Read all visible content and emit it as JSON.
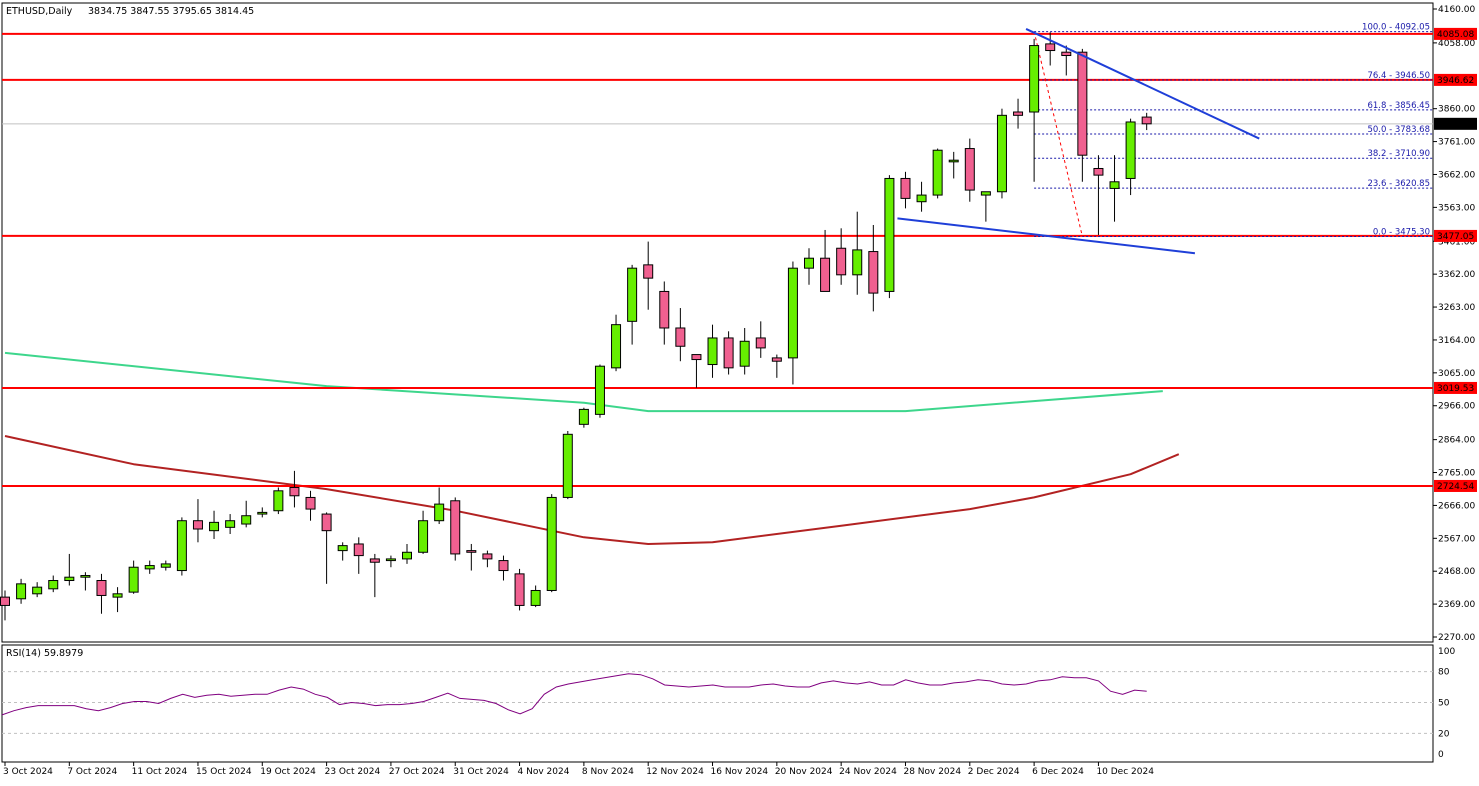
{
  "header": {
    "symbol_label": "ETHUSD,Daily",
    "ohlc_text": "3834.75 3847.55 3795.65 3814.45"
  },
  "rsi_panel": {
    "label": "RSI(14) 59.8979",
    "levels": [
      100,
      80,
      50,
      20,
      0
    ],
    "dashed_levels": [
      80,
      50,
      20
    ],
    "values": [
      38,
      42,
      45,
      47,
      47,
      47,
      47,
      44,
      42,
      45,
      49,
      51,
      51,
      49,
      54,
      58,
      55,
      57,
      58,
      56,
      57,
      58,
      58,
      62,
      65,
      63,
      58,
      55,
      48,
      50,
      49,
      47,
      48,
      48,
      49,
      51,
      55,
      59,
      54,
      53,
      52,
      49,
      43,
      39,
      44,
      58,
      65,
      68,
      70,
      72,
      74,
      76,
      78,
      77,
      73,
      67,
      66,
      65,
      66,
      67,
      65,
      65,
      65,
      67,
      68,
      66,
      65,
      65,
      69,
      71,
      69,
      68,
      70,
      67,
      67,
      72,
      69,
      67,
      67,
      69,
      70,
      72,
      71,
      68,
      67,
      68,
      71,
      72,
      75,
      74,
      74,
      71,
      61,
      58,
      62,
      61
    ],
    "color": "#800080"
  },
  "chart_data": {
    "type": "candlestick",
    "title": "ETHUSD,Daily",
    "ohlc_last": {
      "open": 3834.75,
      "high": 3847.55,
      "low": 3795.65,
      "close": 3814.45
    },
    "y_ticks": [
      4160.0,
      4058.0,
      3860.0,
      3761.0,
      3662.0,
      3563.0,
      3461.0,
      3362.0,
      3263.0,
      3164.0,
      3065.0,
      2966.0,
      2864.0,
      2765.0,
      2666.0,
      2567.0,
      2468.0,
      2369.0,
      2270.0
    ],
    "x_ticks": [
      {
        "label": "3 Oct 2024",
        "bar": 0
      },
      {
        "label": "7 Oct 2024",
        "bar": 4
      },
      {
        "label": "11 Oct 2024",
        "bar": 8
      },
      {
        "label": "15 Oct 2024",
        "bar": 12
      },
      {
        "label": "19 Oct 2024",
        "bar": 16
      },
      {
        "label": "23 Oct 2024",
        "bar": 20
      },
      {
        "label": "27 Oct 2024",
        "bar": 24
      },
      {
        "label": "31 Oct 2024",
        "bar": 28
      },
      {
        "label": "4 Nov 2024",
        "bar": 32
      },
      {
        "label": "8 Nov 2024",
        "bar": 36
      },
      {
        "label": "12 Nov 2024",
        "bar": 40
      },
      {
        "label": "16 Nov 2024",
        "bar": 44
      },
      {
        "label": "20 Nov 2024",
        "bar": 48
      },
      {
        "label": "24 Nov 2024",
        "bar": 52
      },
      {
        "label": "28 Nov 2024",
        "bar": 56
      },
      {
        "label": "2 Dec 2024",
        "bar": 60
      },
      {
        "label": "6 Dec 2024",
        "bar": 64
      },
      {
        "label": "10 Dec 2024",
        "bar": 68
      }
    ],
    "candles": [
      [
        2390,
        2410,
        2320,
        2365
      ],
      [
        2385,
        2445,
        2370,
        2430
      ],
      [
        2400,
        2435,
        2390,
        2420
      ],
      [
        2415,
        2455,
        2405,
        2440
      ],
      [
        2440,
        2520,
        2425,
        2450
      ],
      [
        2450,
        2465,
        2410,
        2455
      ],
      [
        2440,
        2460,
        2340,
        2395
      ],
      [
        2390,
        2420,
        2345,
        2400
      ],
      [
        2405,
        2500,
        2400,
        2480
      ],
      [
        2475,
        2500,
        2460,
        2485
      ],
      [
        2480,
        2500,
        2470,
        2490
      ],
      [
        2470,
        2630,
        2455,
        2620
      ],
      [
        2620,
        2685,
        2555,
        2595
      ],
      [
        2590,
        2650,
        2565,
        2615
      ],
      [
        2600,
        2640,
        2580,
        2620
      ],
      [
        2610,
        2680,
        2600,
        2635
      ],
      [
        2640,
        2660,
        2630,
        2645
      ],
      [
        2650,
        2720,
        2640,
        2710
      ],
      [
        2720,
        2770,
        2660,
        2695
      ],
      [
        2690,
        2710,
        2620,
        2655
      ],
      [
        2640,
        2645,
        2430,
        2590
      ],
      [
        2530,
        2555,
        2500,
        2545
      ],
      [
        2550,
        2570,
        2460,
        2515
      ],
      [
        2505,
        2520,
        2390,
        2495
      ],
      [
        2500,
        2515,
        2480,
        2505
      ],
      [
        2505,
        2550,
        2490,
        2525
      ],
      [
        2525,
        2650,
        2520,
        2620
      ],
      [
        2620,
        2720,
        2610,
        2670
      ],
      [
        2680,
        2690,
        2500,
        2520
      ],
      [
        2530,
        2550,
        2470,
        2525
      ],
      [
        2520,
        2530,
        2480,
        2505
      ],
      [
        2500,
        2515,
        2440,
        2470
      ],
      [
        2460,
        2475,
        2350,
        2365
      ],
      [
        2365,
        2425,
        2360,
        2410
      ],
      [
        2410,
        2700,
        2405,
        2690
      ],
      [
        2690,
        2890,
        2685,
        2880
      ],
      [
        2910,
        2960,
        2900,
        2955
      ],
      [
        2940,
        3090,
        2930,
        3085
      ],
      [
        3080,
        3240,
        3070,
        3210
      ],
      [
        3220,
        3390,
        3150,
        3380
      ],
      [
        3390,
        3460,
        3255,
        3350
      ],
      [
        3310,
        3340,
        3150,
        3200
      ],
      [
        3200,
        3260,
        3100,
        3145
      ],
      [
        3120,
        3120,
        3020,
        3105
      ],
      [
        3090,
        3210,
        3050,
        3170
      ],
      [
        3170,
        3190,
        3060,
        3080
      ],
      [
        3085,
        3200,
        3060,
        3160
      ],
      [
        3170,
        3220,
        3110,
        3140
      ],
      [
        3110,
        3120,
        3050,
        3100
      ],
      [
        3110,
        3400,
        3030,
        3380
      ],
      [
        3380,
        3440,
        3330,
        3410
      ],
      [
        3410,
        3495,
        3320,
        3310
      ],
      [
        3440,
        3500,
        3330,
        3360
      ],
      [
        3360,
        3550,
        3300,
        3435
      ],
      [
        3430,
        3510,
        3250,
        3305
      ],
      [
        3310,
        3660,
        3290,
        3650
      ],
      [
        3650,
        3670,
        3560,
        3590
      ],
      [
        3580,
        3640,
        3550,
        3600
      ],
      [
        3600,
        3740,
        3590,
        3735
      ],
      [
        3700,
        3730,
        3650,
        3705
      ],
      [
        3740,
        3770,
        3580,
        3615
      ],
      [
        3600,
        3610,
        3520,
        3610
      ],
      [
        3610,
        3860,
        3590,
        3840
      ],
      [
        3850,
        3890,
        3800,
        3840
      ],
      [
        3850,
        4070,
        3640,
        4050
      ],
      [
        4055,
        4090,
        3990,
        4035
      ],
      [
        4030,
        4050,
        3960,
        4020
      ],
      [
        4030,
        4040,
        3640,
        3720
      ],
      [
        3680,
        3720,
        3480,
        3660
      ],
      [
        3620,
        3720,
        3520,
        3640
      ],
      [
        3650,
        3830,
        3600,
        3820
      ],
      [
        3834.75,
        3847.55,
        3795.65,
        3814.45
      ]
    ],
    "moving_averages": [
      {
        "color": "#3dd68c",
        "values": [
          [
            0,
            3125
          ],
          [
            20,
            3025
          ],
          [
            36,
            2975
          ],
          [
            40,
            2950
          ],
          [
            56,
            2950
          ],
          [
            72,
            3010
          ]
        ]
      },
      {
        "color": "#b22222",
        "values": [
          [
            0,
            2875
          ],
          [
            8,
            2790
          ],
          [
            20,
            2715
          ],
          [
            28,
            2650
          ],
          [
            36,
            2570
          ],
          [
            40,
            2550
          ],
          [
            44,
            2555
          ],
          [
            52,
            2605
          ],
          [
            60,
            2655
          ],
          [
            64,
            2690
          ],
          [
            70,
            2760
          ],
          [
            73,
            2820
          ]
        ]
      }
    ],
    "horizontal_levels": [
      {
        "price": 4085.08,
        "label": "4085.08",
        "color": "#ff0000"
      },
      {
        "price": 3946.62,
        "label": "3946.62",
        "color": "#ff0000"
      },
      {
        "price": 3477.05,
        "label": "3477.05",
        "color": "#ff0000"
      },
      {
        "price": 3019.53,
        "label": "3019.53",
        "color": "#ff0000"
      },
      {
        "price": 2724.54,
        "label": "2724.54",
        "color": "#ff0000"
      }
    ],
    "current_price": {
      "price": 3814.45,
      "label": "3814.45"
    },
    "fibonacci": [
      {
        "price": 4092.05,
        "label": "100.0 - 4092.05"
      },
      {
        "price": 3946.5,
        "label": "76.4 - 3946.50"
      },
      {
        "price": 3856.45,
        "label": "61.8 - 3856.45"
      },
      {
        "price": 3783.68,
        "label": "50.0 - 3783.68"
      },
      {
        "price": 3710.9,
        "label": "38.2 - 3710.90"
      },
      {
        "price": 3620.85,
        "label": "23.6 - 3620.85"
      },
      {
        "price": 3475.3,
        "label": "0.0 - 3475.30"
      }
    ],
    "fib_anchor_bar_start": 64,
    "fib_anchor_bar_end": 67,
    "trendlines": [
      {
        "color": "#1f3fd8",
        "from": {
          "bar": 63.5,
          "price": 4100
        },
        "to": {
          "bar": 78.0,
          "price": 3770
        }
      },
      {
        "color": "#1f3fd8",
        "from": {
          "bar": 55.5,
          "price": 3530
        },
        "to": {
          "bar": 74.0,
          "price": 3425
        }
      }
    ],
    "colors": {
      "bull": "#66ee00",
      "bear": "#f06090",
      "fib": "#1a1aaa"
    }
  }
}
